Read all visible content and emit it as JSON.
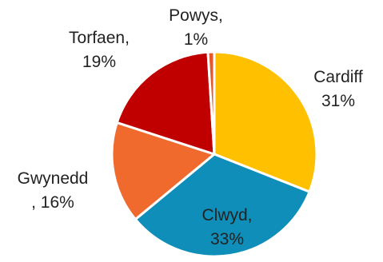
{
  "chart_data": {
    "type": "pie",
    "title": "",
    "categories": [
      "Cardiff",
      "Clwyd",
      "Gwynedd",
      "Torfaen",
      "Powys"
    ],
    "values": [
      31,
      33,
      16,
      19,
      1
    ],
    "colors": [
      "#FFC000",
      "#0E8EB8",
      "#F06A2E",
      "#C00000",
      "#E8572A"
    ],
    "labels": [
      {
        "line1": "Cardiff",
        "line2": "31%"
      },
      {
        "line1": "Clwyd,",
        "line2": "33%"
      },
      {
        "line1": "Gwynedd",
        "line2": ", 16%"
      },
      {
        "line1": "Torfaen,",
        "line2": "19%"
      },
      {
        "line1": "Powys,",
        "line2": "1%"
      }
    ],
    "start_angle_deg": 0,
    "direction": "clockwise",
    "legend": "none"
  }
}
